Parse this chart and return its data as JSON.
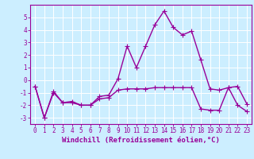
{
  "title": "",
  "xlabel": "Windchill (Refroidissement éolien,°C)",
  "background_color": "#cceeff",
  "grid_color": "#ffffff",
  "line_color": "#990099",
  "x_values": [
    0,
    1,
    2,
    3,
    4,
    5,
    6,
    7,
    8,
    9,
    10,
    11,
    12,
    13,
    14,
    15,
    16,
    17,
    18,
    19,
    20,
    21,
    22,
    23
  ],
  "y_line1": [
    -0.5,
    -3.0,
    -1.0,
    -1.8,
    -1.7,
    -2.0,
    -2.0,
    -1.3,
    -1.2,
    0.1,
    2.7,
    1.0,
    2.7,
    4.4,
    5.5,
    4.2,
    3.6,
    3.9,
    1.6,
    -0.7,
    -0.8,
    -0.6,
    -0.5,
    -1.9
  ],
  "y_line2": [
    -0.5,
    -3.0,
    -0.9,
    -1.8,
    -1.8,
    -2.0,
    -2.0,
    -1.5,
    -1.4,
    -0.8,
    -0.7,
    -0.7,
    -0.7,
    -0.6,
    -0.6,
    -0.6,
    -0.6,
    -0.6,
    -2.3,
    -2.4,
    -2.4,
    -0.6,
    -2.0,
    -2.5
  ],
  "ylim": [
    -3.5,
    6.0
  ],
  "xlim": [
    -0.5,
    23.5
  ],
  "yticks": [
    -3,
    -2,
    -1,
    0,
    1,
    2,
    3,
    4,
    5
  ],
  "xticks": [
    0,
    1,
    2,
    3,
    4,
    5,
    6,
    7,
    8,
    9,
    10,
    11,
    12,
    13,
    14,
    15,
    16,
    17,
    18,
    19,
    20,
    21,
    22,
    23
  ],
  "marker": "+",
  "markersize": 4,
  "linewidth": 1.0,
  "tick_fontsize": 5.5,
  "xlabel_fontsize": 6.5
}
